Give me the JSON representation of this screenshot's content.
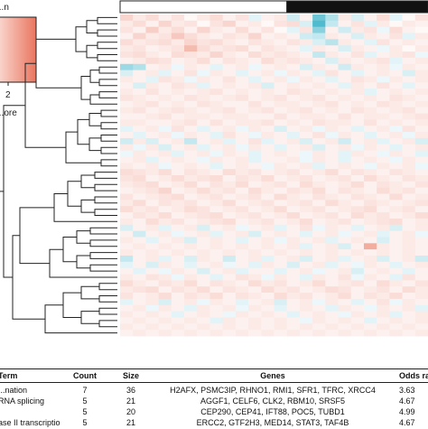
{
  "colors": {
    "low": "#3bb3c8",
    "mid": "#ffffff",
    "high": "#e9765f",
    "group_a": "#ffffff",
    "group_b": "#111111",
    "line": "#222222"
  },
  "legend": {
    "title": "...n",
    "tick_max": "2",
    "caption": "...ore"
  },
  "chart_data": {
    "type": "heatmap",
    "title": "",
    "n_rows": 52,
    "n_cols": 24,
    "value_range": [
      -2,
      2
    ],
    "column_groups": [
      {
        "color": "white",
        "n_cols": 13
      },
      {
        "color": "black",
        "n_cols": 11
      }
    ],
    "values": [
      [
        0.6,
        0.3,
        0.5,
        0.2,
        0.4,
        0.1,
        0.3,
        0.5,
        0.2,
        0.4,
        -0.3,
        0.2,
        0.3,
        -0.5,
        0.2,
        -1.5,
        -0.8,
        0.3,
        -0.4,
        0.2,
        0.5,
        -0.3,
        0.1,
        0.4
      ],
      [
        0.3,
        0.5,
        0.2,
        0.6,
        0.3,
        0.4,
        0.1,
        0.4,
        0.6,
        0.2,
        0.3,
        0.1,
        0.4,
        0.5,
        -0.4,
        -1.8,
        -0.6,
        0.2,
        0.4,
        -0.3,
        0.3,
        0.1,
        0.3,
        0.2
      ],
      [
        0.4,
        0.2,
        0.7,
        0.3,
        0.5,
        0.2,
        0.6,
        0.3,
        0.2,
        0.5,
        0.2,
        0.4,
        0.1,
        -0.3,
        0.4,
        -1.2,
        0.2,
        -0.5,
        0.3,
        0.4,
        -0.2,
        0.5,
        0.2,
        0.1
      ],
      [
        0.2,
        0.6,
        0.3,
        0.4,
        0.8,
        0.5,
        0.3,
        0.2,
        0.4,
        0.3,
        0.6,
        0.2,
        0.3,
        0.2,
        -0.5,
        -0.6,
        0.3,
        0.2,
        -0.4,
        0.3,
        0.2,
        0.4,
        -0.3,
        0.3
      ],
      [
        0.5,
        0.3,
        0.4,
        0.5,
        0.3,
        0.6,
        0.4,
        0.5,
        0.3,
        0.2,
        0.4,
        0.3,
        0.2,
        0.4,
        0.3,
        -0.4,
        -0.7,
        0.3,
        0.2,
        -0.3,
        0.4,
        0.2,
        0.3,
        0.2
      ],
      [
        0.3,
        0.4,
        0.2,
        0.3,
        0.4,
        1.0,
        0.5,
        0.3,
        0.4,
        0.5,
        0.2,
        0.4,
        0.3,
        0.2,
        -0.3,
        0.3,
        0.2,
        -0.4,
        0.3,
        0.2,
        -0.2,
        0.3,
        0.1,
        0.3
      ],
      [
        0.4,
        0.5,
        0.3,
        0.2,
        0.5,
        0.4,
        0.3,
        0.6,
        0.3,
        0.2,
        0.5,
        0.3,
        0.4,
        0.3,
        0.2,
        -0.6,
        0.3,
        0.2,
        0.4,
        -0.3,
        0.2,
        0.3,
        0.4,
        -0.2
      ],
      [
        0.2,
        0.3,
        0.5,
        0.4,
        0.2,
        0.3,
        0.5,
        0.2,
        0.4,
        0.3,
        0.2,
        0.5,
        0.3,
        0.4,
        0.3,
        0.2,
        -0.4,
        0.3,
        0.2,
        0.3,
        0.4,
        -0.3,
        0.2,
        0.3
      ],
      [
        -1.0,
        -0.8,
        0.2,
        0.3,
        -0.2,
        0.3,
        0.2,
        -0.3,
        0.2,
        0.3,
        -0.2,
        0.2,
        0.3,
        0.2,
        -0.4,
        0.3,
        0.2,
        -0.5,
        0.3,
        0.2,
        0.3,
        -0.2,
        0.3,
        0.2
      ],
      [
        -0.4,
        0.2,
        0.3,
        -0.3,
        0.2,
        0.4,
        -0.2,
        0.3,
        0.2,
        -0.3,
        0.2,
        0.3,
        -0.2,
        0.3,
        0.2,
        -0.3,
        0.4,
        0.2,
        -0.3,
        0.2,
        0.3,
        0.2,
        -0.4,
        0.3
      ],
      [
        0.3,
        0.2,
        -0.3,
        0.4,
        0.3,
        -0.2,
        0.3,
        0.2,
        0.4,
        0.2,
        -0.3,
        0.2,
        0.3,
        -0.2,
        0.3,
        0.2,
        -0.3,
        0.2,
        0.4,
        0.3,
        -0.2,
        0.3,
        0.2,
        0.3
      ],
      [
        0.2,
        -0.4,
        0.3,
        0.2,
        0.4,
        0.3,
        -0.3,
        0.2,
        0.3,
        0.2,
        0.3,
        -0.4,
        0.2,
        0.3,
        0.2,
        0.3,
        0.2,
        -0.3,
        0.3,
        0.2,
        0.4,
        0.2,
        -0.3,
        0.2
      ],
      [
        0.3,
        0.2,
        0.4,
        0.2,
        0.3,
        0.2,
        0.3,
        0.4,
        0.2,
        0.3,
        0.2,
        0.3,
        0.2,
        0.4,
        0.3,
        0.2,
        0.3,
        0.2,
        0.3,
        -0.3,
        0.2,
        0.3,
        0.2,
        0.3
      ],
      [
        0.4,
        0.3,
        0.2,
        0.3,
        0.2,
        0.4,
        0.3,
        0.2,
        0.3,
        0.4,
        0.2,
        0.3,
        0.4,
        0.2,
        0.3,
        0.4,
        0.2,
        0.3,
        0.2,
        0.3,
        0.2,
        0.4,
        0.3,
        0.2
      ],
      [
        0.2,
        0.3,
        0.4,
        0.2,
        0.3,
        0.2,
        0.4,
        0.3,
        0.2,
        0.2,
        0.4,
        0.2,
        0.3,
        0.3,
        0.2,
        0.3,
        0.4,
        0.2,
        0.3,
        0.2,
        0.4,
        0.3,
        0.2,
        0.3
      ],
      [
        0.3,
        0.4,
        0.2,
        0.3,
        0.4,
        0.3,
        0.2,
        0.3,
        0.4,
        0.2,
        0.3,
        0.4,
        0.2,
        0.3,
        0.4,
        0.2,
        0.3,
        0.2,
        0.4,
        0.3,
        0.2,
        0.3,
        0.4,
        0.2
      ],
      [
        0.2,
        0.2,
        0.3,
        0.4,
        0.2,
        0.3,
        0.3,
        0.2,
        0.3,
        0.3,
        0.2,
        0.2,
        0.4,
        0.2,
        0.3,
        0.3,
        0.2,
        0.4,
        0.2,
        0.3,
        0.3,
        0.2,
        0.3,
        0.4
      ],
      [
        0.3,
        0.3,
        0.2,
        0.2,
        0.3,
        0.4,
        0.2,
        0.4,
        0.2,
        0.3,
        0.3,
        0.4,
        0.2,
        0.3,
        0.2,
        0.4,
        0.3,
        0.3,
        0.2,
        0.4,
        0.2,
        0.3,
        0.2,
        0.3
      ],
      [
        -0.3,
        0.2,
        0.3,
        -0.2,
        0.4,
        0.2,
        -0.3,
        0.2,
        0.3,
        -0.2,
        0.3,
        0.2,
        -0.4,
        0.2,
        0.3,
        -0.2,
        0.3,
        0.2,
        -0.3,
        0.2,
        0.3,
        -0.2,
        0.4,
        0.2
      ],
      [
        0.2,
        -0.3,
        0.2,
        0.3,
        -0.2,
        0.3,
        0.2,
        -0.3,
        0.4,
        0.2,
        -0.2,
        0.3,
        0.2,
        -0.3,
        0.2,
        0.4,
        -0.2,
        0.3,
        0.2,
        -0.3,
        0.2,
        0.3,
        -0.2,
        0.3
      ],
      [
        -0.5,
        0.3,
        -0.4,
        0.2,
        0.3,
        -0.6,
        0.2,
        0.3,
        -0.3,
        0.2,
        0.4,
        -0.3,
        0.2,
        0.3,
        -0.4,
        0.2,
        0.3,
        -0.5,
        0.2,
        0.3,
        -0.3,
        0.2,
        0.3,
        -0.4
      ],
      [
        0.3,
        -0.2,
        0.3,
        -0.4,
        0.2,
        0.3,
        -0.3,
        0.2,
        0.3,
        -0.2,
        0.3,
        0.2,
        -0.3,
        0.2,
        0.3,
        -0.4,
        0.2,
        0.3,
        -0.2,
        0.3,
        0.2,
        -0.3,
        0.2,
        0.3
      ],
      [
        -0.2,
        0.3,
        0.2,
        0.3,
        -0.3,
        0.2,
        0.3,
        -0.2,
        0.3,
        0.2,
        -0.3,
        0.2,
        0.3,
        0.2,
        -0.2,
        0.3,
        0.2,
        -0.3,
        0.3,
        0.2,
        -0.2,
        0.3,
        0.2,
        -0.3
      ],
      [
        0.2,
        0.3,
        -0.3,
        0.2,
        0.3,
        0.2,
        -0.2,
        0.3,
        0.2,
        0.3,
        -0.3,
        0.2,
        0.2,
        0.3,
        -0.2,
        0.3,
        0.2,
        -0.3,
        0.2,
        0.3,
        0.2,
        -0.2,
        0.3,
        0.2
      ],
      [
        0.3,
        0.2,
        0.3,
        -0.2,
        0.2,
        0.3,
        0.2,
        -0.3,
        0.2,
        0.3,
        0.2,
        -0.2,
        0.3,
        0.2,
        0.3,
        -0.3,
        0.2,
        0.3,
        0.2,
        -0.2,
        0.3,
        0.2,
        0.3,
        -0.2
      ],
      [
        0.5,
        0.4,
        0.3,
        0.5,
        0.2,
        0.4,
        0.3,
        0.2,
        0.5,
        0.3,
        0.4,
        0.2,
        0.3,
        0.4,
        0.2,
        0.3,
        0.5,
        0.2,
        0.4,
        0.3,
        0.2,
        0.4,
        0.3,
        0.2
      ],
      [
        0.4,
        0.5,
        0.2,
        0.3,
        0.5,
        0.3,
        0.4,
        0.5,
        0.2,
        0.4,
        0.3,
        0.5,
        0.2,
        0.3,
        0.4,
        0.2,
        0.3,
        0.4,
        0.2,
        0.5,
        0.3,
        0.2,
        0.4,
        0.3
      ],
      [
        0.3,
        0.4,
        0.5,
        0.2,
        0.3,
        0.5,
        0.2,
        0.4,
        0.3,
        0.5,
        0.2,
        0.3,
        0.4,
        0.2,
        0.5,
        0.3,
        0.2,
        0.3,
        0.5,
        0.2,
        0.4,
        0.3,
        0.2,
        0.4
      ],
      [
        0.2,
        0.3,
        0.4,
        0.6,
        0.2,
        0.3,
        0.5,
        0.3,
        0.4,
        0.2,
        0.5,
        0.3,
        0.2,
        0.4,
        0.3,
        0.5,
        0.2,
        0.4,
        0.3,
        0.2,
        0.5,
        0.3,
        0.4,
        0.2
      ],
      [
        0.4,
        0.2,
        0.3,
        0.4,
        0.5,
        0.2,
        0.3,
        0.4,
        0.2,
        0.3,
        0.4,
        0.2,
        0.5,
        0.3,
        0.2,
        0.4,
        0.3,
        0.2,
        0.4,
        0.3,
        0.2,
        0.5,
        0.2,
        0.3
      ],
      [
        0.3,
        0.5,
        0.2,
        0.4,
        0.3,
        0.4,
        0.2,
        0.3,
        0.5,
        0.2,
        0.3,
        0.4,
        0.2,
        0.3,
        0.4,
        0.2,
        0.5,
        0.3,
        0.2,
        0.4,
        0.3,
        0.2,
        0.3,
        0.4
      ],
      [
        0.5,
        0.3,
        0.4,
        0.2,
        0.3,
        0.5,
        0.4,
        0.2,
        0.3,
        0.4,
        0.2,
        0.3,
        0.5,
        0.2,
        0.3,
        0.4,
        0.2,
        0.3,
        0.4,
        0.5,
        0.2,
        0.3,
        0.4,
        0.2
      ],
      [
        0.2,
        0.4,
        0.3,
        0.5,
        0.2,
        0.3,
        0.4,
        0.5,
        0.2,
        0.3,
        0.4,
        0.2,
        0.3,
        0.5,
        0.2,
        0.3,
        0.4,
        0.2,
        0.5,
        0.3,
        0.4,
        0.2,
        0.3,
        0.5
      ],
      [
        0.3,
        0.2,
        0.5,
        0.3,
        0.4,
        0.2,
        0.3,
        0.4,
        0.5,
        0.2,
        0.3,
        0.4,
        0.2,
        0.3,
        0.5,
        0.2,
        0.3,
        0.4,
        0.2,
        0.3,
        0.4,
        0.5,
        0.2,
        0.3
      ],
      [
        -0.4,
        0.2,
        0.3,
        -0.3,
        0.2,
        0.3,
        -0.4,
        0.2,
        0.3,
        -0.2,
        0.2,
        0.3,
        -0.3,
        0.2,
        0.4,
        -0.2,
        0.3,
        0.2,
        -0.3,
        0.2,
        0.3,
        -0.4,
        0.2,
        0.3
      ],
      [
        0.2,
        -0.5,
        0.2,
        0.3,
        -0.2,
        0.2,
        0.3,
        -0.3,
        0.2,
        0.3,
        -0.4,
        0.2,
        0.3,
        0.2,
        -0.3,
        0.2,
        0.3,
        -0.2,
        0.2,
        0.3,
        -0.3,
        0.2,
        0.3,
        -0.2
      ],
      [
        0.3,
        0.2,
        -0.3,
        0.2,
        0.3,
        -0.4,
        0.2,
        0.3,
        0.2,
        -0.3,
        0.2,
        0.3,
        -0.2,
        0.3,
        0.2,
        0.3,
        -0.3,
        0.2,
        0.3,
        0.2,
        -0.4,
        0.2,
        0.3,
        0.2
      ],
      [
        0.2,
        0.3,
        0.2,
        0.3,
        0.2,
        0.3,
        0.2,
        0.3,
        0.2,
        0.3,
        0.2,
        0.3,
        0.2,
        0.3,
        -0.3,
        0.2,
        0.3,
        -0.4,
        0.2,
        1.2,
        0.3,
        0.2,
        0.3,
        0.2
      ],
      [
        0.3,
        0.2,
        0.3,
        0.2,
        0.3,
        0.2,
        0.3,
        0.2,
        0.3,
        0.2,
        0.3,
        0.2,
        0.3,
        0.2,
        0.3,
        0.2,
        0.3,
        0.2,
        0.3,
        0.2,
        0.3,
        0.2,
        0.3,
        0.2
      ],
      [
        -0.6,
        0.2,
        0.3,
        -0.3,
        0.2,
        -0.4,
        0.3,
        0.2,
        -0.5,
        0.2,
        0.3,
        -0.3,
        0.2,
        0.3,
        -0.4,
        0.2,
        0.3,
        -0.3,
        0.2,
        0.3,
        -0.4,
        0.2,
        0.3,
        -0.5
      ],
      [
        -0.3,
        0.2,
        -0.4,
        0.3,
        0.2,
        -0.3,
        0.2,
        0.3,
        -0.2,
        0.2,
        -0.3,
        0.3,
        0.2,
        -0.4,
        0.2,
        0.3,
        -0.3,
        0.2,
        -0.2,
        0.3,
        0.2,
        -0.3,
        0.2,
        0.3
      ],
      [
        0.2,
        -0.3,
        0.2,
        -0.2,
        0.3,
        0.2,
        -0.4,
        0.2,
        0.3,
        -0.3,
        0.2,
        0.2,
        -0.3,
        0.2,
        0.3,
        -0.2,
        0.2,
        0.3,
        -0.4,
        0.2,
        0.3,
        0.2,
        -0.3,
        0.2
      ],
      [
        0.3,
        0.2,
        0.4,
        0.3,
        -0.2,
        0.3,
        0.2,
        -0.3,
        0.2,
        0.4,
        0.3,
        -0.2,
        0.3,
        0.2,
        -0.3,
        0.3,
        0.2,
        0.4,
        -0.2,
        0.3,
        0.2,
        -0.3,
        0.4,
        0.2
      ],
      [
        0.5,
        0.3,
        0.2,
        0.4,
        0.3,
        0.5,
        0.2,
        0.4,
        0.3,
        0.2,
        0.5,
        0.3,
        0.4,
        0.2,
        0.3,
        0.5,
        0.2,
        0.3,
        0.4,
        0.2,
        0.5,
        0.3,
        0.2,
        0.4
      ],
      [
        0.3,
        0.4,
        0.5,
        0.2,
        0.4,
        0.3,
        0.5,
        0.2,
        0.4,
        0.3,
        0.2,
        0.5,
        0.3,
        0.4,
        0.2,
        0.3,
        0.5,
        0.4,
        0.2,
        0.3,
        0.4,
        0.2,
        0.5,
        0.3
      ],
      [
        0.4,
        0.2,
        0.3,
        0.5,
        0.2,
        0.4,
        0.3,
        0.5,
        0.2,
        0.4,
        0.3,
        0.2,
        0.5,
        0.3,
        0.4,
        0.2,
        0.3,
        0.5,
        0.2,
        0.4,
        0.3,
        0.5,
        0.2,
        0.3
      ],
      [
        -0.3,
        0.2,
        0.3,
        -0.4,
        0.2,
        0.3,
        -0.2,
        0.3,
        0.2,
        -0.3,
        0.2,
        0.3,
        -0.4,
        0.2,
        0.3,
        -0.2,
        0.3,
        0.2,
        -0.3,
        0.2,
        0.4,
        -0.2,
        0.3,
        0.2
      ],
      [
        0.2,
        0.3,
        -0.2,
        0.3,
        0.2,
        -0.3,
        0.3,
        0.2,
        0.3,
        -0.2,
        0.3,
        0.2,
        -0.3,
        0.2,
        0.3,
        0.2,
        -0.3,
        0.3,
        0.2,
        -0.2,
        0.3,
        0.2,
        0.3,
        -0.3
      ],
      [
        0.3,
        0.2,
        0.3,
        0.2,
        -0.3,
        0.2,
        0.3,
        0.2,
        -0.2,
        0.3,
        0.2,
        0.3,
        0.2,
        -0.3,
        0.2,
        0.3,
        0.2,
        -0.2,
        0.3,
        0.2,
        0.3,
        -0.3,
        0.2,
        0.3
      ],
      [
        0.2,
        0.3,
        0.2,
        0.3,
        0.2,
        0.3,
        0.2,
        -0.3,
        0.3,
        0.2,
        0.3,
        0.2,
        0.3,
        0.2,
        -0.2,
        0.3,
        0.2,
        0.3,
        0.2,
        -0.3,
        0.2,
        0.3,
        0.2,
        0.3
      ],
      [
        0.3,
        0.2,
        0.3,
        0.2,
        0.3,
        0.2,
        0.3,
        0.2,
        0.3,
        0.2,
        0.3,
        0.2,
        0.3,
        0.2,
        0.3,
        0.2,
        0.3,
        0.2,
        0.3,
        0.2,
        0.3,
        0.2,
        0.3,
        0.2
      ],
      [
        0.2,
        0.3,
        0.2,
        0.3,
        0.2,
        0.3,
        0.2,
        0.3,
        0.2,
        0.3,
        0.2,
        0.3,
        0.2,
        0.3,
        0.2,
        0.3,
        0.2,
        0.3,
        0.2,
        0.3,
        0.2,
        0.3,
        0.2,
        0.3
      ]
    ]
  },
  "table": {
    "headers": {
      "term": "Term",
      "count": "Count",
      "size": "Size",
      "genes": "Genes",
      "odds": "Odds ra"
    },
    "rows": [
      {
        "term": "...nation",
        "count": "7",
        "size": "36",
        "genes": "H2AFX, PSMC3IP, RHNO1, RMI1, SFR1, TFRC, XRCC4",
        "odds": "3.63"
      },
      {
        "term": "RNA splicing",
        "count": "5",
        "size": "21",
        "genes": "AGGF1, CELF6, CLK2, RBM10, SRSF5",
        "odds": "4.67"
      },
      {
        "term": "",
        "count": "5",
        "size": "20",
        "genes": "CEP290, CEP41, IFT88, POC5, TUBD1",
        "odds": "4.99"
      },
      {
        "term": "ase II transcriptio",
        "count": "5",
        "size": "21",
        "genes": "ERCC2, GTF2H3, MED14, STAT3, TAF4B",
        "odds": "4.67"
      }
    ]
  }
}
